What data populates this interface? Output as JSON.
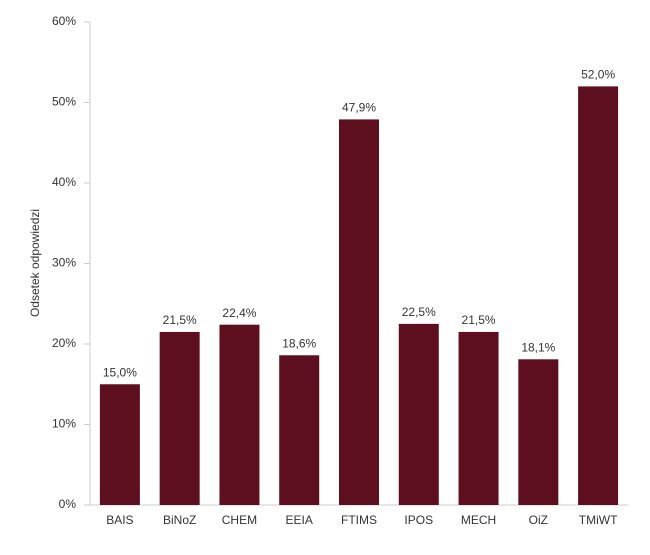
{
  "chart_data": {
    "type": "bar",
    "y_label": "Odsetek odpowiedzi",
    "categories": [
      "BAIS",
      "BiNoZ",
      "CHEM",
      "EEIA",
      "FTIMS",
      "IPOS",
      "MECH",
      "OiZ",
      "TMiWT"
    ],
    "values": [
      15.0,
      21.5,
      22.4,
      18.6,
      47.9,
      22.5,
      21.5,
      18.1,
      52.0
    ],
    "value_labels": [
      "15,0%",
      "21,5%",
      "22,4%",
      "18,6%",
      "47,9%",
      "22,5%",
      "21,5%",
      "18,1%",
      "52,0%"
    ],
    "color": "#5e0f1f",
    "ylim": [
      0,
      60
    ],
    "yticks": [
      {
        "value": 0,
        "label": "0%"
      },
      {
        "value": 10,
        "label": "10%"
      },
      {
        "value": 20,
        "label": "20%"
      },
      {
        "value": 30,
        "label": "30%"
      },
      {
        "value": 40,
        "label": "40%"
      },
      {
        "value": 50,
        "label": "50%"
      },
      {
        "value": 60,
        "label": "60%"
      }
    ],
    "grid": false
  }
}
